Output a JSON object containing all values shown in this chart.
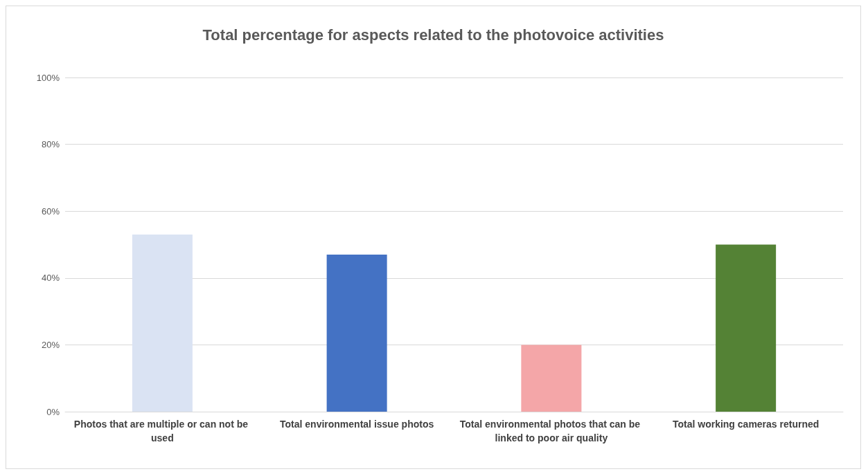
{
  "chart_data": {
    "type": "bar",
    "title": "Total percentage for aspects related to the photovoice activities",
    "categories": [
      "Photos that are multiple or can not be used",
      "Total environmental issue photos",
      "Total environmental photos that can be linked to poor air quality",
      "Total working cameras returned"
    ],
    "values": [
      53,
      47,
      20,
      50
    ],
    "colors": [
      "#dae3f3",
      "#4472c4",
      "#f4a6a8",
      "#548235"
    ],
    "ylim": [
      0,
      100
    ],
    "yticks": [
      {
        "value": 0,
        "label": "0%"
      },
      {
        "value": 20,
        "label": "20%"
      },
      {
        "value": 40,
        "label": "40%"
      },
      {
        "value": 60,
        "label": "60%"
      },
      {
        "value": 80,
        "label": "80%"
      },
      {
        "value": 100,
        "label": "100%"
      }
    ],
    "grid": "y"
  }
}
